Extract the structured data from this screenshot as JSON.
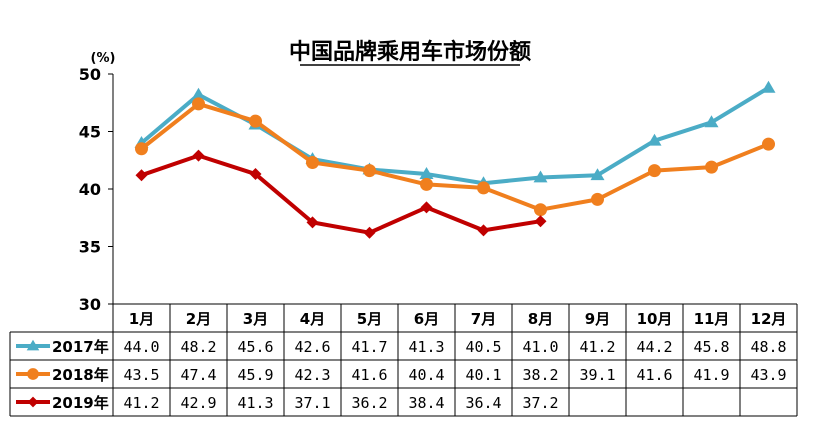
{
  "chart_data": {
    "type": "line",
    "title": "中国品牌乘用车市场份额",
    "unit_label": "(%)",
    "ylim": [
      30,
      50
    ],
    "yticks": [
      "30",
      "35",
      "40",
      "45",
      "50"
    ],
    "categories": [
      "1月",
      "2月",
      "3月",
      "4月",
      "5月",
      "6月",
      "7月",
      "8月",
      "9月",
      "10月",
      "11月",
      "12月"
    ],
    "grid": false,
    "legend": "data-table-left",
    "series": [
      {
        "name": "2017年",
        "color": "#4bacc6",
        "marker": "triangle",
        "values": [
          44.0,
          48.2,
          45.6,
          42.6,
          41.7,
          41.3,
          40.5,
          41.0,
          41.2,
          44.2,
          45.8,
          48.8
        ],
        "labels": [
          "44.0",
          "48.2",
          "45.6",
          "42.6",
          "41.7",
          "41.3",
          "40.5",
          "41.0",
          "41.2",
          "44.2",
          "45.8",
          "48.8"
        ]
      },
      {
        "name": "2018年",
        "color": "#f07f1e",
        "marker": "circle",
        "values": [
          43.5,
          47.4,
          45.9,
          42.3,
          41.6,
          40.4,
          40.1,
          38.2,
          39.1,
          41.6,
          41.9,
          43.9
        ],
        "labels": [
          "43.5",
          "47.4",
          "45.9",
          "42.3",
          "41.6",
          "40.4",
          "40.1",
          "38.2",
          "39.1",
          "41.6",
          "41.9",
          "43.9"
        ]
      },
      {
        "name": "2019年",
        "color": "#c00000",
        "marker": "diamond",
        "values": [
          41.2,
          42.9,
          41.3,
          37.1,
          36.2,
          38.4,
          36.4,
          37.2,
          null,
          null,
          null,
          null
        ],
        "labels": [
          "41.2",
          "42.9",
          "41.3",
          "37.1",
          "36.2",
          "38.4",
          "36.4",
          "37.2",
          "",
          "",
          "",
          ""
        ]
      }
    ]
  }
}
